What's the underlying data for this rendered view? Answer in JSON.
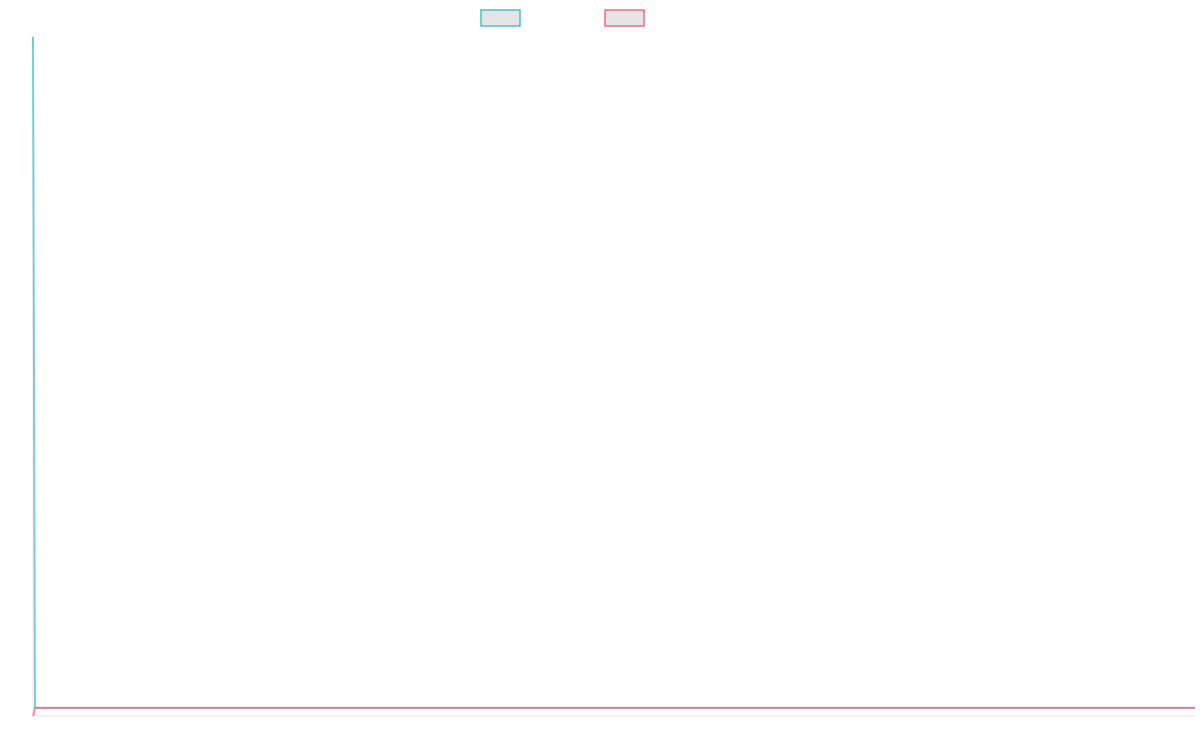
{
  "chart_data": {
    "type": "line",
    "title": "",
    "xlabel": "",
    "ylabel": "",
    "x": [
      0,
      1,
      580
    ],
    "xlim": [
      0,
      580
    ],
    "ylim": [
      0,
      100
    ],
    "grid": false,
    "legend": "top",
    "series": [
      {
        "color": "#4bc0c0",
        "values": [
          100,
          1.2,
          1.2
        ]
      },
      {
        "color": "#ff6384",
        "values": [
          0,
          1.2,
          1.2
        ]
      }
    ],
    "axis_color": "#e0e0e0",
    "legend_box_fill": "#e5e5e5"
  }
}
